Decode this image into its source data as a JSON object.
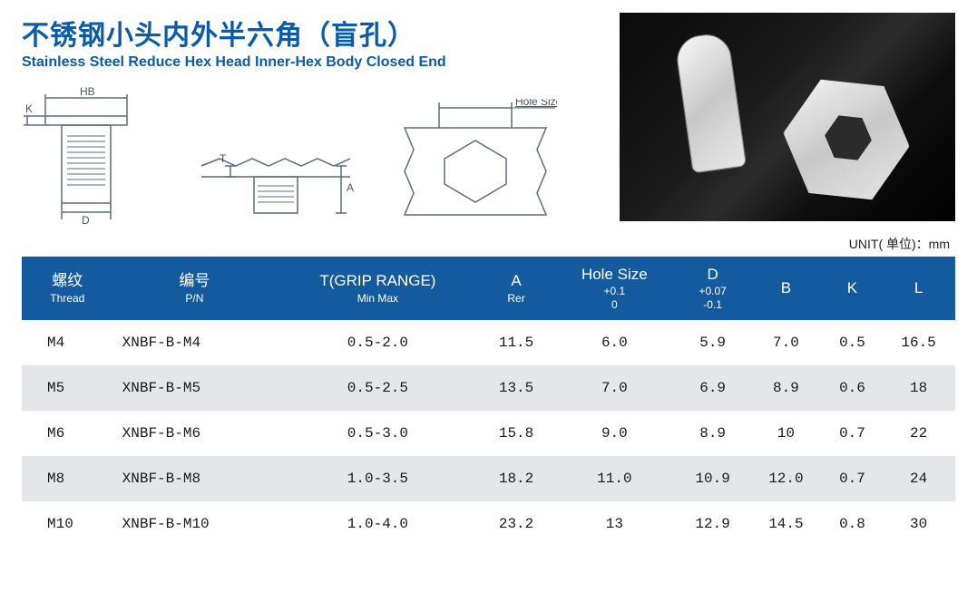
{
  "title_cn": "不锈钢小头内外半六角（盲孔）",
  "title_en": "Stainless Steel Reduce Hex Head Inner-Hex Body Closed End",
  "unit_label": "UNIT( 单位)：mm",
  "diagram_labels": {
    "hb": "HB",
    "k": "K",
    "d": "D",
    "t": "T",
    "a": "A",
    "hole_size": "Hole Size"
  },
  "table": {
    "header_bg": "#145a9e",
    "header_fg": "#ffffff",
    "row_alt_bg": "#e4e6ea",
    "columns": [
      {
        "label": "螺纹",
        "sub": "Thread"
      },
      {
        "label": "编号",
        "sub": "P/N"
      },
      {
        "label": "T(GRIP RANGE)",
        "sub": "Min Max"
      },
      {
        "label": "A",
        "sub": "Rer"
      },
      {
        "label": "Hole Size",
        "sub": "+0.1\n0"
      },
      {
        "label": "D",
        "sub": "+0.07\n-0.1"
      },
      {
        "label": "B",
        "sub": ""
      },
      {
        "label": "K",
        "sub": ""
      },
      {
        "label": "L",
        "sub": ""
      }
    ],
    "rows": [
      [
        "M4",
        "XNBF-B-M4",
        "0.5-2.0",
        "11.5",
        "6.0",
        "5.9",
        "7.0",
        "0.5",
        "16.5"
      ],
      [
        "M5",
        "XNBF-B-M5",
        "0.5-2.5",
        "13.5",
        "7.0",
        "6.9",
        "8.9",
        "0.6",
        "18"
      ],
      [
        "M6",
        "XNBF-B-M6",
        "0.5-3.0",
        "15.8",
        "9.0",
        "8.9",
        "10",
        "0.7",
        "22"
      ],
      [
        "M8",
        "XNBF-B-M8",
        "1.0-3.5",
        "18.2",
        "11.0",
        "10.9",
        "12.0",
        "0.7",
        "24"
      ],
      [
        "M10",
        "XNBF-B-M10",
        "1.0-4.0",
        "23.2",
        "13",
        "12.9",
        "14.5",
        "0.8",
        "30"
      ]
    ]
  }
}
